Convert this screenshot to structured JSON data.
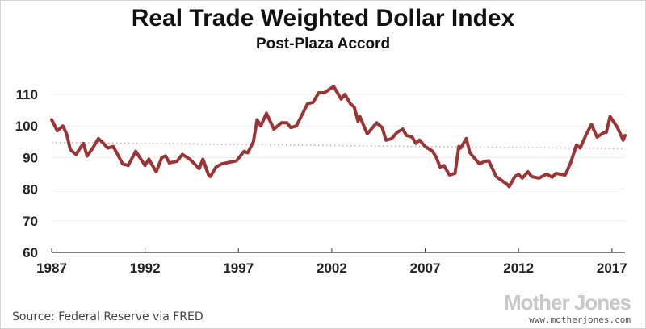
{
  "chart_data": {
    "type": "line",
    "title": "Real Trade Weighted Dollar Index",
    "subtitle": "Post-Plaza Accord",
    "xlabel": "",
    "ylabel": "",
    "xlim": [
      1987,
      2017.7
    ],
    "ylim": [
      60,
      115
    ],
    "x_ticks": [
      1987,
      1992,
      1997,
      2002,
      2007,
      2012,
      2017
    ],
    "y_ticks": [
      60,
      70,
      80,
      90,
      100,
      110
    ],
    "grid": true,
    "series": [
      {
        "color": "#9b3535",
        "x": [
          1987.0,
          1987.3,
          1987.6,
          1987.8,
          1988.0,
          1988.3,
          1988.7,
          1988.9,
          1989.2,
          1989.5,
          1989.7,
          1990.0,
          1990.3,
          1990.8,
          1991.1,
          1991.5,
          1992.0,
          1992.2,
          1992.6,
          1992.9,
          1993.1,
          1993.3,
          1993.7,
          1994.0,
          1994.4,
          1994.9,
          1995.1,
          1995.4,
          1995.5,
          1995.8,
          1996.1,
          1996.5,
          1996.9,
          1997.3,
          1997.5,
          1997.8,
          1998.0,
          1998.2,
          1998.5,
          1998.9,
          1999.3,
          1999.6,
          1999.8,
          2000.1,
          2000.4,
          2000.7,
          2001.0,
          2001.3,
          2001.6,
          2002.1,
          2002.5,
          2002.7,
          2003.0,
          2003.2,
          2003.4,
          2003.5,
          2003.9,
          2004.4,
          2004.7,
          2004.9,
          2005.2,
          2005.5,
          2005.8,
          2006.0,
          2006.3,
          2006.5,
          2006.7,
          2007.0,
          2007.4,
          2007.6,
          2007.8,
          2008.0,
          2008.3,
          2008.6,
          2008.8,
          2008.9,
          2009.2,
          2009.4,
          2009.9,
          2010.2,
          2010.4,
          2010.8,
          2011.4,
          2011.5,
          2011.8,
          2012.0,
          2012.2,
          2012.5,
          2012.7,
          2013.1,
          2013.5,
          2013.8,
          2014.0,
          2014.5,
          2014.8,
          2015.1,
          2015.3,
          2015.6,
          2015.9,
          2016.2,
          2016.6,
          2016.7,
          2016.9,
          2017.3,
          2017.6,
          2017.7
        ],
        "values": [
          102,
          98.5,
          100,
          97.5,
          92.5,
          91,
          94.5,
          90.5,
          93,
          96,
          95,
          93,
          93.5,
          88,
          87.5,
          92,
          87.5,
          89.5,
          85.5,
          90,
          90.5,
          88.3,
          88.8,
          91,
          89.5,
          86.5,
          89.5,
          84.5,
          84,
          87,
          88,
          88.5,
          89,
          92,
          91.5,
          95,
          102,
          100,
          104,
          99,
          101,
          101,
          99.5,
          100,
          103.5,
          107,
          107.5,
          110.5,
          110.5,
          112.5,
          108.5,
          110,
          107,
          106,
          101.5,
          103,
          97.5,
          101,
          99.5,
          95.5,
          96,
          98,
          99,
          97,
          96.5,
          94.5,
          95.5,
          93.5,
          92,
          90,
          87,
          87.5,
          84.5,
          85,
          93.5,
          93,
          96,
          91.5,
          88,
          88.8,
          89,
          84,
          81.5,
          80.8,
          84,
          84.7,
          83.5,
          85.5,
          84,
          83.5,
          84.8,
          83.8,
          85,
          84.5,
          88.5,
          94,
          93,
          97,
          100.5,
          96.5,
          98,
          98,
          103,
          99.5,
          95.5,
          97
        ]
      }
    ],
    "trendline": {
      "style": "dotted",
      "color": "#e8a0a0",
      "x": [
        1987,
        2017.7
      ],
      "values": [
        94.8,
        92.8
      ]
    },
    "source": "Source: Federal Reserve via FRED"
  },
  "logo": {
    "name": "Mother Jones",
    "url": "www.motherjones.com"
  }
}
